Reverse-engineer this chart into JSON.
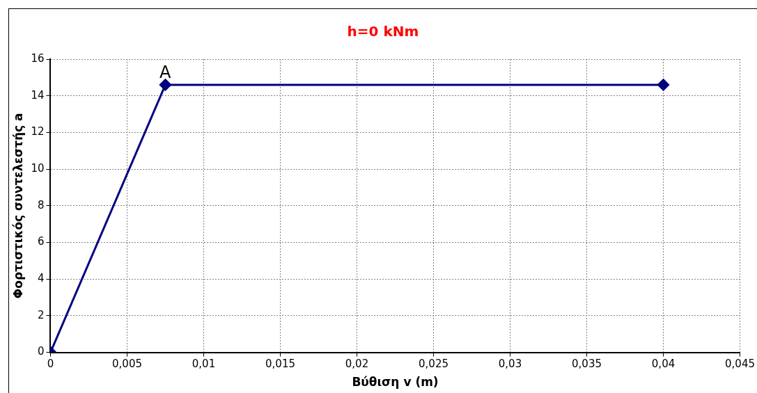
{
  "chart_data": {
    "type": "line",
    "title": "h=0 kNm",
    "xlabel": "Βύθιση v (m)",
    "ylabel": "Φορτιστικός συντελεστής a",
    "series": [
      {
        "color": "#000080",
        "x": [
          0,
          0.0075,
          0.04
        ],
        "values": [
          0,
          14.6,
          14.6
        ]
      }
    ],
    "annotations": [
      {
        "text": "A",
        "x": 0.0075,
        "y": 14.6
      }
    ],
    "xlim": [
      0,
      0.045
    ],
    "xticks": [
      0,
      {
        "value": 0.005,
        "label": "0,005"
      },
      {
        "value": 0.01,
        "label": "0,01"
      },
      {
        "value": 0.015,
        "label": "0,015"
      },
      {
        "value": 0.02,
        "label": "0,02"
      },
      {
        "value": 0.025,
        "label": "0,025"
      },
      {
        "value": 0.03,
        "label": "0,03"
      },
      {
        "value": 0.035,
        "label": "0,035"
      },
      {
        "value": 0.04,
        "label": "0,04"
      },
      {
        "value": 0.045,
        "label": "0,045"
      }
    ],
    "ylim": [
      0,
      16
    ],
    "yticks": [
      0,
      2,
      4,
      6,
      8,
      10,
      12,
      14,
      16
    ],
    "grid": true,
    "legend": false,
    "marker": "diamond",
    "line_style": "solid"
  }
}
